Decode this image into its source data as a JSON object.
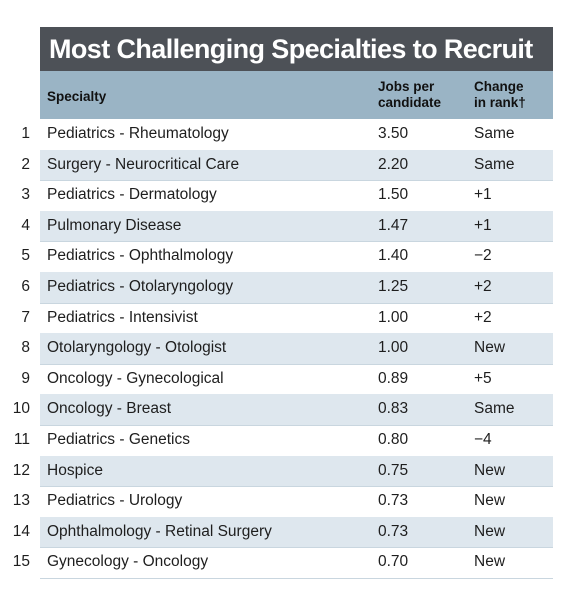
{
  "title": "Most Challenging Specialties to Recruit",
  "columns": {
    "specialty": "Specialty",
    "jobs_line1": "Jobs per",
    "jobs_line2": "candidate",
    "change_line1": "Change",
    "change_line2": "in rank†"
  },
  "rows": [
    {
      "rank": "1",
      "specialty": "Pediatrics - Rheumatology",
      "jobs": "3.50",
      "change": "Same"
    },
    {
      "rank": "2",
      "specialty": "Surgery - Neurocritical Care",
      "jobs": "2.20",
      "change": "Same"
    },
    {
      "rank": "3",
      "specialty": "Pediatrics - Dermatology",
      "jobs": "1.50",
      "change": "+1"
    },
    {
      "rank": "4",
      "specialty": "Pulmonary Disease",
      "jobs": "1.47",
      "change": "+1"
    },
    {
      "rank": "5",
      "specialty": "Pediatrics - Ophthalmology",
      "jobs": "1.40",
      "change": "−2"
    },
    {
      "rank": "6",
      "specialty": "Pediatrics - Otolaryngology",
      "jobs": "1.25",
      "change": "+2"
    },
    {
      "rank": "7",
      "specialty": "Pediatrics - Intensivist",
      "jobs": "1.00",
      "change": "+2"
    },
    {
      "rank": "8",
      "specialty": "Otolaryngology - Otologist",
      "jobs": "1.00",
      "change": "New"
    },
    {
      "rank": "9",
      "specialty": "Oncology - Gynecological",
      "jobs": "0.89",
      "change": "+5"
    },
    {
      "rank": "10",
      "specialty": "Oncology - Breast",
      "jobs": "0.83",
      "change": "Same"
    },
    {
      "rank": "11",
      "specialty": "Pediatrics - Genetics",
      "jobs": "0.80",
      "change": "−4"
    },
    {
      "rank": "12",
      "specialty": "Hospice",
      "jobs": "0.75",
      "change": "New"
    },
    {
      "rank": "13",
      "specialty": "Pediatrics - Urology",
      "jobs": "0.73",
      "change": "New"
    },
    {
      "rank": "14",
      "specialty": "Ophthalmology - Retinal Surgery",
      "jobs": "0.73",
      "change": "New"
    },
    {
      "rank": "15",
      "specialty": "Gynecology - Oncology",
      "jobs": "0.70",
      "change": "New"
    }
  ],
  "colors": {
    "title_bg": "#4d5157",
    "header_bg": "#9ab4c5",
    "shaded_row_bg": "#dee7ee"
  }
}
